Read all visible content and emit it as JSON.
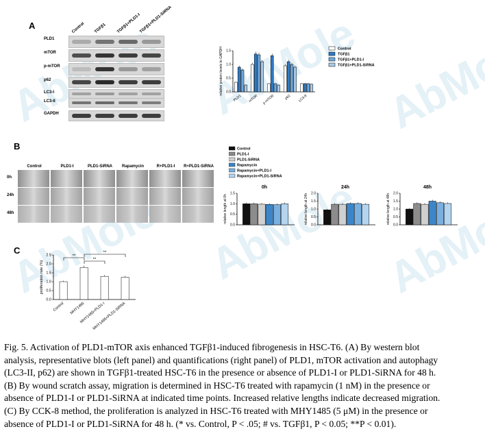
{
  "watermark": "AbMole",
  "panelA": {
    "letter": "A",
    "lanes": [
      "Control",
      "TGFβ1",
      "TGFβ1+PLD1-I",
      "TGFβ1+PLD1-SiRNA"
    ],
    "rows": [
      "PLD1",
      "mTOR",
      "p-mTOR",
      "p62",
      "LC3-I",
      "LC3-II",
      "GAPDH"
    ],
    "chart_data": {
      "type": "bar",
      "ylabel": "relative protein levels to GAPDH",
      "categories": [
        "PLD1",
        "mTOR",
        "p-mTOR",
        "p62",
        "LC3-II"
      ],
      "ylim": [
        0,
        1.5
      ],
      "yticks": [
        "0.0",
        "0.5",
        "1.0",
        "1.5"
      ],
      "legend": "top-right",
      "series": [
        {
          "name": "Control",
          "color": "#ffffff",
          "values": [
            0.35,
            1.0,
            0.3,
            0.95,
            0.3
          ]
        },
        {
          "name": "TGFβ1",
          "color": "#2e7bc4",
          "values": [
            0.9,
            1.38,
            1.32,
            1.1,
            0.3
          ]
        },
        {
          "name": "TGFβ1+PLD1-I",
          "color": "#6fa8dc",
          "values": [
            0.8,
            1.35,
            0.3,
            1.0,
            0.3
          ]
        },
        {
          "name": "TGFβ1+PLD1-SiRNA",
          "color": "#a9cbe8",
          "values": [
            0.25,
            1.1,
            0.25,
            0.9,
            0.28
          ]
        }
      ]
    }
  },
  "panelB": {
    "letter": "B",
    "columns": [
      "Control",
      "PLD1-I",
      "PLD1-SiRNA",
      "Rapamycin",
      "R+PLD1-I",
      "R+PLD1-SiRNA"
    ],
    "rows": [
      "0h",
      "24h",
      "48h"
    ],
    "legend": [
      "Control",
      "PLD1-I",
      "PLD1-SiRNA",
      "Rapamycin",
      "Rapamycin+PLD1-I",
      "Rapamycin+PLD1-SiRNA"
    ],
    "colors": [
      "#111111",
      "#8c8c8c",
      "#d0d0d0",
      "#3c86c8",
      "#79b0e0",
      "#b4d4ef"
    ],
    "chart_data": [
      {
        "type": "bar",
        "title": "0h",
        "ylabel": "relative length at 0h",
        "ylim": [
          0,
          1.5
        ],
        "yticks": [
          "0.0",
          "0.5",
          "1.0",
          "1.5"
        ],
        "categories": [
          "Control",
          "PLD1-I",
          "PLD1-SiRNA",
          "Rapamycin",
          "Rapamycin+PLD1-I",
          "Rapamycin+PLD1-SiRNA"
        ],
        "values": [
          1.0,
          1.0,
          0.98,
          0.97,
          0.96,
          1.0
        ]
      },
      {
        "type": "bar",
        "title": "24h",
        "ylabel": "relative length at 24h",
        "ylim": [
          0,
          2.0
        ],
        "yticks": [
          "0.0",
          "0.5",
          "1.0",
          "1.5",
          "2.0"
        ],
        "categories": [
          "Control",
          "PLD1-I",
          "PLD1-SiRNA",
          "Rapamycin",
          "Rapamycin+PLD1-I",
          "Rapamycin+PLD1-SiRNA"
        ],
        "values": [
          0.95,
          1.3,
          1.3,
          1.35,
          1.35,
          1.3
        ]
      },
      {
        "type": "bar",
        "title": "48h",
        "ylabel": "relative length at 48h",
        "ylim": [
          0,
          2.0
        ],
        "yticks": [
          "0.0",
          "0.5",
          "1.0",
          "1.5",
          "2.0"
        ],
        "categories": [
          "Control",
          "PLD1-I",
          "PLD1-SiRNA",
          "Rapamycin",
          "Rapamycin+PLD1-I",
          "Rapamycin+PLD1-SiRNA"
        ],
        "values": [
          1.0,
          1.35,
          1.3,
          1.5,
          1.4,
          1.35
        ]
      }
    ]
  },
  "panelC": {
    "letter": "C",
    "chart_data": {
      "type": "bar",
      "ylabel": "proliferation rate (%)",
      "categories": [
        "Control",
        "MHY1485",
        "MHY1485+PLD1-I",
        "MHY1485+PLD1-SiRNA"
      ],
      "values": [
        1.0,
        1.8,
        1.3,
        1.25
      ],
      "colors": [
        "#ffffff",
        "#e8414a",
        "#ee7f85",
        "#f5b0b3"
      ],
      "ylim": [
        0,
        2.5
      ],
      "yticks": [
        "0.0",
        "0.5",
        "1.0",
        "1.5",
        "2.0",
        "2.5"
      ],
      "sig": [
        "**",
        "**",
        "**"
      ]
    }
  },
  "caption": [
    "Fig. 5. Activation of PLD1-mTOR axis enhanced TGFβ1-induced fibrogenesis in HSC-T6. (A) By western blot",
    "analysis, representative blots (left panel) and quantifications (right panel) of PLD1, mTOR activation and autophagy",
    "(LC3-II, p62) are shown in TGFβ1-treated HSC-T6 in the presence or absence of PLD1-I or PLD1-SiRNA for 48 h.",
    "(B) By wound scratch assay, migration is determined in HSC-T6 treated with rapamycin (1 nM) in the presence or",
    "absence of PLD1-I or PLD1-SiRNA at indicated time points. Increased relative lengths indicate decreased migration.",
    "(C) By CCK-8 method, the proliferation is analyzed in HSC-T6 treated with MHY1485 (5 μM) in the presence or",
    "absence of PLD1-I or PLD1-SiRNA for 48 h. (* vs. Control, P < .05; # vs. TGFβ1, P < 0.05; **P < 0.01)."
  ]
}
